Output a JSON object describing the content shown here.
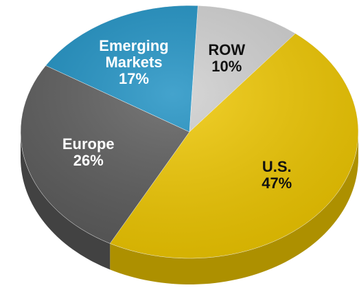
{
  "chart_data": {
    "type": "pie",
    "categories": [
      "ROW",
      "U.S.",
      "Europe",
      "Emerging Markets"
    ],
    "values": [
      10,
      47,
      26,
      17
    ],
    "value_labels": [
      "10%",
      "47%",
      "26%",
      "17%"
    ],
    "colors": [
      "#cfcfcf",
      "#f0c800",
      "#5b5b5b",
      "#1b8fc2"
    ]
  }
}
